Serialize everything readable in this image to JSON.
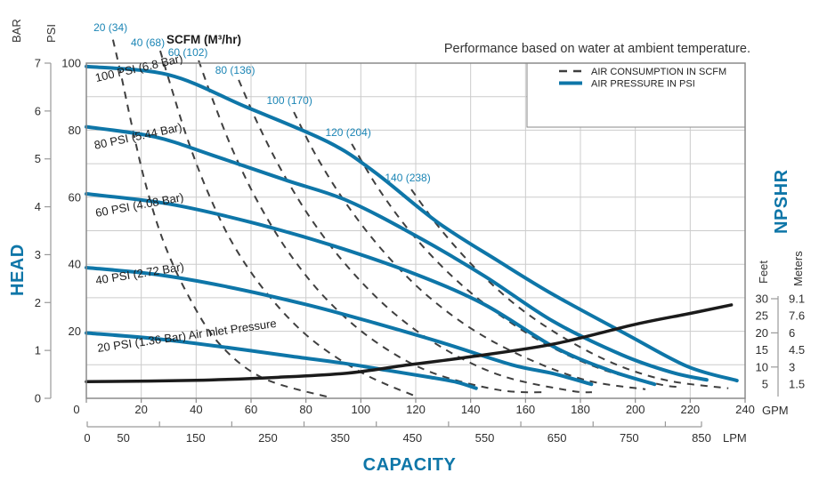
{
  "header": {
    "note": "Performance based on water at ambient temperature.",
    "scfm_units_label": "SCFM (M³/hr)"
  },
  "legend": {
    "items": [
      {
        "label": "AIR CONSUMPTION IN SCFM",
        "style": "dashed-gray"
      },
      {
        "label": "AIR PRESSURE IN PSI",
        "style": "solid-blue"
      }
    ]
  },
  "axes": {
    "bar": {
      "title": "BAR",
      "ticks": [
        7,
        6,
        5,
        4,
        3,
        2,
        1,
        0
      ],
      "range": [
        0,
        7
      ]
    },
    "psi": {
      "title": "PSI",
      "ticks": [
        100,
        80,
        60,
        40,
        20
      ],
      "range": [
        0,
        100
      ]
    },
    "head_title": "HEAD",
    "gpm": {
      "ticks": [
        0,
        20,
        40,
        60,
        80,
        100,
        120,
        140,
        160,
        180,
        200,
        220,
        240
      ],
      "unit": "GPM",
      "range": [
        0,
        240
      ]
    },
    "lpm": {
      "labels": [
        0,
        50,
        150,
        250,
        350,
        450,
        550,
        650,
        750,
        850
      ],
      "unit": "LPM",
      "range": [
        0,
        850
      ]
    },
    "capacity_title": "CAPACITY",
    "npshr": {
      "title": "NPSHR",
      "feet_title": "Feet",
      "meters_title": "Meters",
      "feet_ticks": [
        30,
        25,
        20,
        15,
        10,
        5
      ],
      "meters_ticks": [
        "9.1",
        "7.6",
        "6",
        "4.5",
        "3",
        "1.5"
      ]
    }
  },
  "colors": {
    "curve_blue": "#0e76a8",
    "label_blue": "#1b85b5",
    "dash_gray": "#3f3f3f",
    "grid": "#cccccc",
    "border": "#8a8a8a",
    "black_curve": "#1b1b1b",
    "text": "#333333"
  },
  "chart_data": {
    "type": "line",
    "title": "Performance based on water at ambient temperature.",
    "xlabel": "CAPACITY (GPM 0-240, LPM 0-850)",
    "ylabel": "HEAD (PSI 0-100, BAR 0-7)",
    "y2label": "NPSHR (Feet 5-30, Meters 1.5-9.1)",
    "grid": {
      "x_step_gpm": 20,
      "y_step_psi": 10
    },
    "legend_position": "top-right",
    "pressure_curves": [
      {
        "label": "100 PSI (6.8 Bar)",
        "label_at": [
          3.6,
          94.4
        ],
        "label_angle": -13,
        "points": [
          [
            0,
            99
          ],
          [
            30,
            96.5
          ],
          [
            58,
            87
          ],
          [
            88,
            76.5
          ],
          [
            105,
            67.5
          ],
          [
            128,
            52.5
          ],
          [
            150,
            41
          ],
          [
            170,
            31
          ],
          [
            197,
            19
          ],
          [
            219,
            9.5
          ],
          [
            237,
            5.3
          ]
        ]
      },
      {
        "label": "80 PSI (5.44 Bar)",
        "label_at": [
          3.2,
          74.3
        ],
        "label_angle": -12,
        "points": [
          [
            0,
            81
          ],
          [
            25,
            78
          ],
          [
            46,
            72.5
          ],
          [
            73,
            65
          ],
          [
            95,
            59
          ],
          [
            120,
            48.5
          ],
          [
            145,
            36.5
          ],
          [
            170,
            23
          ],
          [
            195,
            13
          ],
          [
            213,
            7.8
          ],
          [
            226,
            5.5
          ]
        ]
      },
      {
        "label": "60 PSI (4.08 Bar)",
        "label_at": [
          3.6,
          54.1
        ],
        "label_angle": -10.5,
        "points": [
          [
            0,
            61
          ],
          [
            30,
            58
          ],
          [
            60,
            52.5
          ],
          [
            90,
            45.5
          ],
          [
            120,
            37
          ],
          [
            145,
            28
          ],
          [
            170,
            15.5
          ],
          [
            190,
            8.5
          ],
          [
            207,
            4.2
          ]
        ]
      },
      {
        "label": "40 PSI (2.72 Bar)",
        "label_at": [
          3.6,
          34.0
        ],
        "label_angle": -9,
        "points": [
          [
            0,
            39
          ],
          [
            25,
            37
          ],
          [
            50,
            33.5
          ],
          [
            80,
            28
          ],
          [
            105,
            22.5
          ],
          [
            130,
            16.5
          ],
          [
            155,
            10
          ],
          [
            170,
            7.4
          ],
          [
            184,
            4.2
          ]
        ]
      },
      {
        "label": "20 PSI (1.36 Bar) Air Inlet Pressure",
        "label_at": [
          4.2,
          13.8
        ],
        "label_angle": -8,
        "points": [
          [
            0,
            19.5
          ],
          [
            25,
            17.8
          ],
          [
            50,
            15.3
          ],
          [
            75,
            12.5
          ],
          [
            95,
            10.3
          ],
          [
            110,
            8.3
          ],
          [
            125,
            6.3
          ],
          [
            135,
            4.8
          ],
          [
            142,
            3
          ]
        ]
      }
    ],
    "air_consumption_curves": [
      {
        "label": "20 (34)",
        "label_at": [
          8.8,
          110.6
        ],
        "points": [
          [
            9.7,
            107
          ],
          [
            12.7,
            96.3
          ],
          [
            16.5,
            81.7
          ],
          [
            21.4,
            64.5
          ],
          [
            27.9,
            47.2
          ],
          [
            36.7,
            31.3
          ],
          [
            48,
            16.7
          ],
          [
            64.2,
            6.1
          ],
          [
            88.5,
            0.3
          ]
        ]
      },
      {
        "label": "40 (68)",
        "label_at": [
          22.4,
          106.1
        ],
        "points": [
          [
            26.9,
            103.7
          ],
          [
            31.1,
            92.3
          ],
          [
            36.7,
            77.7
          ],
          [
            44.1,
            61.8
          ],
          [
            53.5,
            45.9
          ],
          [
            65.8,
            31.3
          ],
          [
            81.4,
            18
          ],
          [
            100.9,
            7.4
          ],
          [
            120.3,
            0.5
          ]
        ]
      },
      {
        "label": "60 (102)",
        "label_at": [
          37,
          103.2
        ],
        "points": [
          [
            40.9,
            100.8
          ],
          [
            46.4,
            88.3
          ],
          [
            53.5,
            73.7
          ],
          [
            62.6,
            58.4
          ],
          [
            74,
            43.2
          ],
          [
            87.9,
            29.2
          ],
          [
            104.8,
            17.2
          ],
          [
            124.9,
            8
          ],
          [
            150.2,
            2.5
          ],
          [
            168,
            1.8
          ]
        ]
      },
      {
        "label": "80 (136)",
        "label_at": [
          54.2,
          97.9
        ],
        "points": [
          [
            55.5,
            95
          ],
          [
            62.6,
            81.7
          ],
          [
            71.7,
            67.1
          ],
          [
            82.7,
            52.5
          ],
          [
            96,
            38.5
          ],
          [
            111.9,
            25.5
          ],
          [
            130.7,
            14.6
          ],
          [
            151.8,
            6.6
          ],
          [
            176.1,
            2.3
          ],
          [
            184.2,
            1.8
          ]
        ]
      },
      {
        "label": "100 (170)",
        "label_at": [
          74,
          88.9
        ],
        "points": [
          [
            75.6,
            85.4
          ],
          [
            83.7,
            72.4
          ],
          [
            94.4,
            58.4
          ],
          [
            107.4,
            44.6
          ],
          [
            122.6,
            31.8
          ],
          [
            140.4,
            20.7
          ],
          [
            160.6,
            11.9
          ],
          [
            182.6,
            5.3
          ],
          [
            203.7,
            2.7
          ]
        ]
      },
      {
        "label": "120 (204)",
        "label_at": [
          95.4,
          79.3
        ],
        "points": [
          [
            96.7,
            75.9
          ],
          [
            106.4,
            62.6
          ],
          [
            118.4,
            49.3
          ],
          [
            133,
            36.6
          ],
          [
            149.5,
            25.5
          ],
          [
            168,
            15.9
          ],
          [
            188.4,
            8.5
          ],
          [
            208.6,
            4.2
          ],
          [
            215.7,
            3.4
          ]
        ]
      },
      {
        "label": "140 (238)",
        "label_at": [
          117.1,
          65.8
        ],
        "points": [
          [
            118.4,
            62.3
          ],
          [
            129.1,
            50.4
          ],
          [
            142.1,
            38.5
          ],
          [
            157.3,
            27.3
          ],
          [
            174.5,
            17.8
          ],
          [
            193,
            10.1
          ],
          [
            211.8,
            5.3
          ],
          [
            233.9,
            3
          ]
        ]
      }
    ],
    "npshr_curve": {
      "label": "NPSHR",
      "points_gpm_feet": [
        [
          0,
          5.7
        ],
        [
          40,
          6.1
        ],
        [
          70,
          7
        ],
        [
          95,
          8.2
        ],
        [
          117,
          10.6
        ],
        [
          140,
          13
        ],
        [
          170,
          16.7
        ],
        [
          200,
          22.5
        ],
        [
          220,
          25.7
        ],
        [
          235,
          28.2
        ]
      ]
    }
  }
}
